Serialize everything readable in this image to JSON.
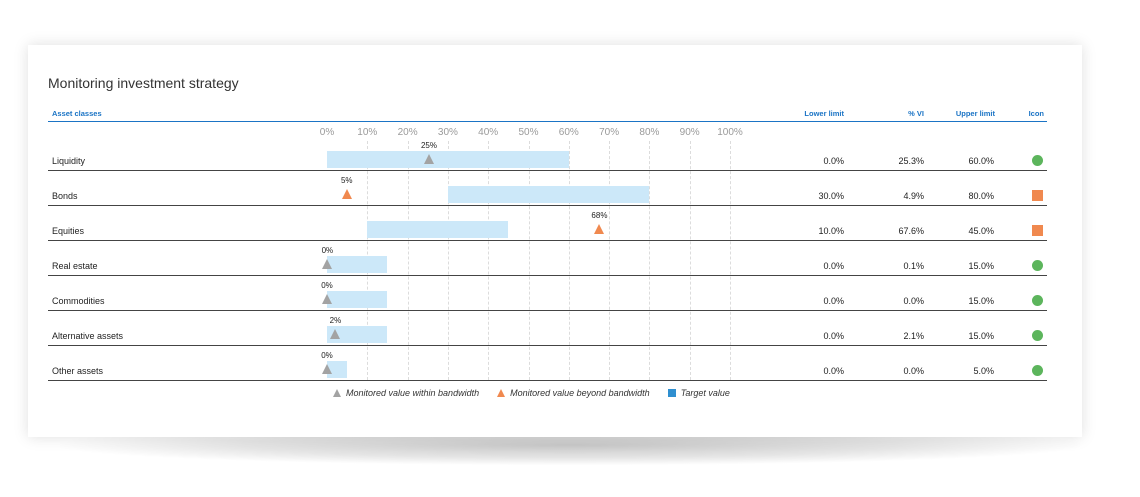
{
  "title": "Monitoring investment strategy",
  "headers": {
    "asset_classes": "Asset classes",
    "lower_limit": "Lower limit",
    "pct_vi": "% VI",
    "upper_limit": "Upper limit",
    "icon": "Icon"
  },
  "legend": {
    "within": "Monitored value within bandwidth",
    "beyond": "Monitored value beyond bandwidth",
    "target": "Target value"
  },
  "colors": {
    "band": "#cce8f9",
    "within": "#a3a3a3",
    "beyond": "#f0894f",
    "target": "#2f8fd0",
    "ok": "#5cb55c",
    "warn": "#f0894f",
    "header": "#1b74c5"
  },
  "chart_data": {
    "type": "bar",
    "title": "Monitoring investment strategy",
    "xlim": [
      0,
      100
    ],
    "x_ticks": [
      "0%",
      "10%",
      "20%",
      "30%",
      "40%",
      "50%",
      "60%",
      "70%",
      "80%",
      "90%",
      "100%"
    ],
    "grid": true,
    "legend_position": "bottom",
    "rows": [
      {
        "asset": "Liquidity",
        "lower": 0.0,
        "value": 25.3,
        "upper": 60.0,
        "marker_label": "25%",
        "status": "within",
        "icon": "green-circle-icon",
        "lower_text": "0.0%",
        "value_text": "25.3%",
        "upper_text": "60.0%"
      },
      {
        "asset": "Bonds",
        "lower": 30.0,
        "value": 4.9,
        "upper": 80.0,
        "marker_label": "5%",
        "status": "beyond",
        "icon": "orange-square-icon",
        "lower_text": "30.0%",
        "value_text": "4.9%",
        "upper_text": "80.0%"
      },
      {
        "asset": "Equities",
        "lower": 10.0,
        "value": 67.6,
        "upper": 45.0,
        "marker_label": "68%",
        "status": "beyond",
        "icon": "orange-square-icon",
        "lower_text": "10.0%",
        "value_text": "67.6%",
        "upper_text": "45.0%"
      },
      {
        "asset": "Real estate",
        "lower": 0.0,
        "value": 0.1,
        "upper": 15.0,
        "marker_label": "0%",
        "status": "within",
        "icon": "green-circle-icon",
        "lower_text": "0.0%",
        "value_text": "0.1%",
        "upper_text": "15.0%"
      },
      {
        "asset": "Commodities",
        "lower": 0.0,
        "value": 0.0,
        "upper": 15.0,
        "marker_label": "0%",
        "status": "within",
        "icon": "green-circle-icon",
        "lower_text": "0.0%",
        "value_text": "0.0%",
        "upper_text": "15.0%"
      },
      {
        "asset": "Alternative assets",
        "lower": 0.0,
        "value": 2.1,
        "upper": 15.0,
        "marker_label": "2%",
        "status": "within",
        "icon": "green-circle-icon",
        "lower_text": "0.0%",
        "value_text": "2.1%",
        "upper_text": "15.0%"
      },
      {
        "asset": "Other assets",
        "lower": 0.0,
        "value": 0.0,
        "upper": 5.0,
        "marker_label": "0%",
        "status": "within",
        "icon": "green-circle-icon",
        "lower_text": "0.0%",
        "value_text": "0.0%",
        "upper_text": "5.0%"
      }
    ]
  }
}
